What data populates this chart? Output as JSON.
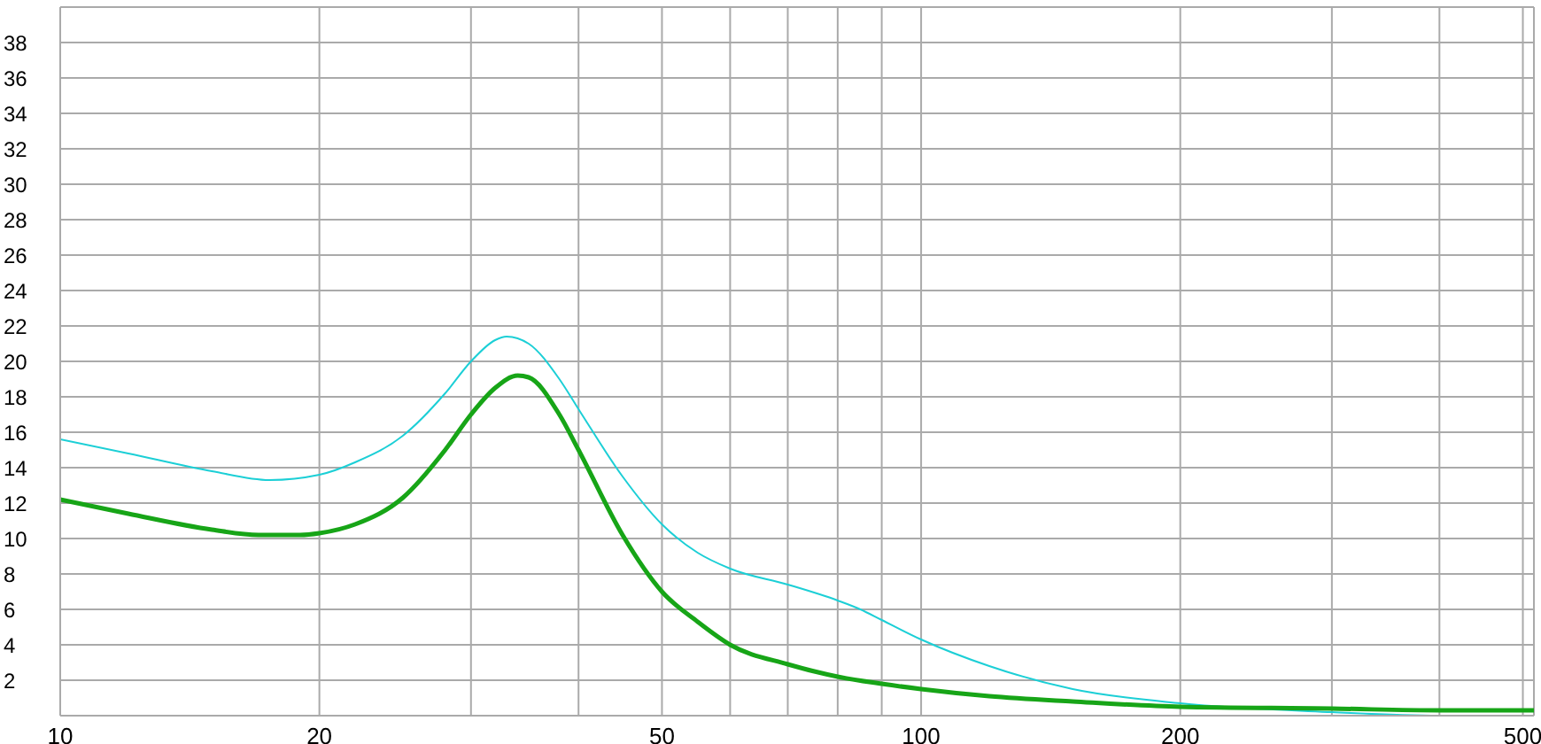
{
  "chart_data": {
    "type": "line",
    "log": "x",
    "grid": true,
    "legend": false,
    "marker": "none",
    "line_style": "solid",
    "xlim": [
      10,
      515
    ],
    "xticks": [
      10,
      20,
      {
        "value": 30,
        "label": null
      },
      {
        "value": 40,
        "label": null
      },
      50,
      {
        "value": 60,
        "label": null
      },
      {
        "value": 70,
        "label": null
      },
      {
        "value": 80,
        "label": null
      },
      {
        "value": 90,
        "label": null
      },
      100,
      200,
      {
        "value": 300,
        "label": null
      },
      {
        "value": 400,
        "label": null
      },
      500
    ],
    "ylim": [
      0,
      40
    ],
    "yticks": [
      {
        "value": 0,
        "label": null
      },
      2,
      4,
      6,
      8,
      10,
      12,
      14,
      16,
      18,
      20,
      22,
      24,
      26,
      28,
      30,
      32,
      34,
      36,
      38,
      {
        "value": 40,
        "label": null
      }
    ],
    "series": [
      {
        "color": "#1ccfd6",
        "x": [
          10,
          12,
          15,
          17.5,
          20,
          22,
          25,
          28,
          30,
          32,
          33,
          35,
          38,
          40,
          45,
          50,
          55,
          60,
          70,
          80,
          85,
          90,
          100,
          120,
          150,
          200,
          300,
          400,
          515
        ],
        "values": [
          15.6,
          14.8,
          13.8,
          13.3,
          13.6,
          14.3,
          15.8,
          18.2,
          20.0,
          21.2,
          21.4,
          21.0,
          19.0,
          17.3,
          13.5,
          10.8,
          9.2,
          8.3,
          7.4,
          6.5,
          6.0,
          5.4,
          4.3,
          2.8,
          1.5,
          0.7,
          0.2,
          0,
          0
        ]
      },
      {
        "color": "#17a517",
        "x": [
          10,
          12,
          15,
          17,
          19,
          20,
          22,
          25,
          28,
          30,
          32,
          34,
          35,
          38,
          40,
          45,
          50,
          55,
          60,
          70,
          80,
          90,
          100,
          120,
          150,
          200,
          300,
          400,
          515
        ],
        "values": [
          12.2,
          11.4,
          10.5,
          10.2,
          10.2,
          10.3,
          10.8,
          12.3,
          15.0,
          17.0,
          18.5,
          19.2,
          19.1,
          17.0,
          15.0,
          10.2,
          7.0,
          5.3,
          4.0,
          2.9,
          2.2,
          1.8,
          1.5,
          1.1,
          0.8,
          0.5,
          0.4,
          0.3,
          0.3
        ]
      }
    ]
  }
}
